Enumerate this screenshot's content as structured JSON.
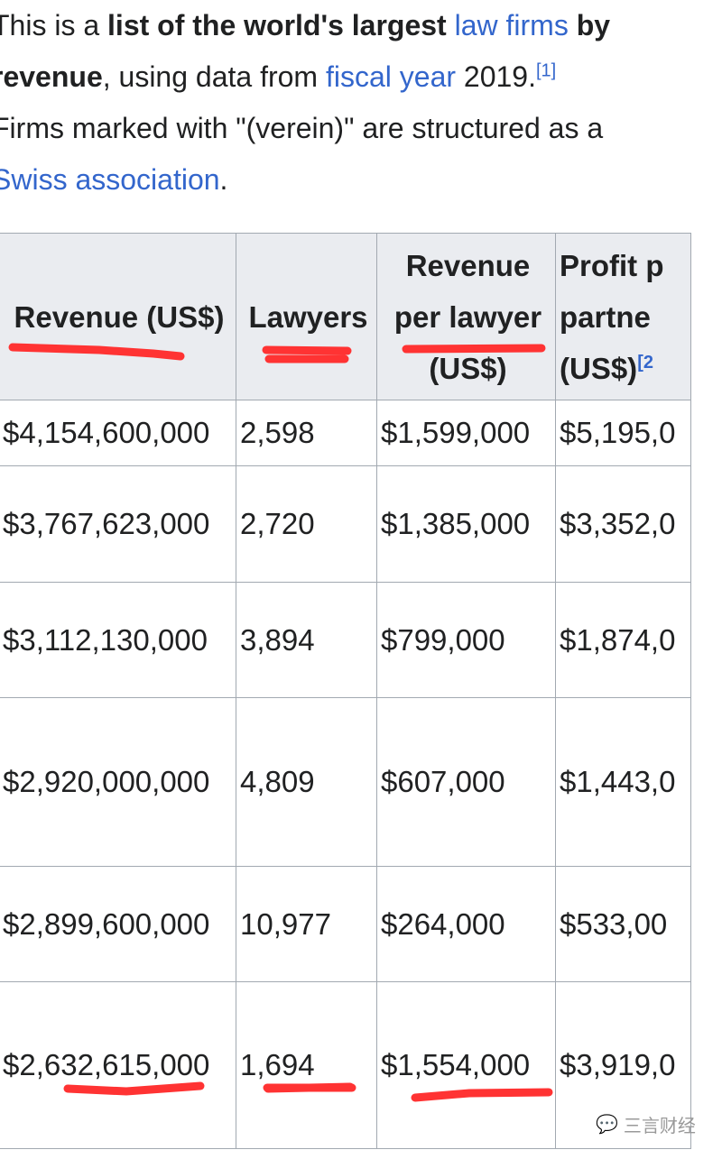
{
  "intro": {
    "p1": {
      "a": "This is a ",
      "b": "list of the world's largest ",
      "link1": "law firms",
      "c": " by",
      "d": "revenue",
      "e": ", using data from ",
      "link2": "fiscal year",
      "f": " 2019.",
      "ref": "[1]"
    },
    "p2": {
      "a": "Firms marked with \"(verein)\" are structured as a",
      "link": "Swiss association",
      "b": "."
    }
  },
  "table": {
    "headers": [
      [
        "Revenue (US$)"
      ],
      [
        "Lawyers"
      ],
      [
        "Revenue",
        "per lawyer",
        "(US$)"
      ],
      [
        "Profit p",
        "partne",
        "(US$)"
      ]
    ],
    "header_ref": "[2",
    "rows": [
      [
        "$4,154,600,000",
        "2,598",
        "$1,599,000",
        "$5,195,0"
      ],
      [
        "$3,767,623,000",
        "2,720",
        "$1,385,000",
        "$3,352,0"
      ],
      [
        "$3,112,130,000",
        "3,894",
        "$799,000",
        "$1,874,0"
      ],
      [
        "$2,920,000,000",
        "4,809",
        "$607,000",
        "$1,443,0"
      ],
      [
        "$2,899,600,000",
        "10,977",
        "$264,000",
        "$533,00"
      ],
      [
        "$2,632,615,000",
        "1,694",
        "$1,554,000",
        "$3,919,0"
      ]
    ]
  },
  "watermark": "三言财经",
  "colors": {
    "link": "#3366cc",
    "annotation": "#ff3333"
  }
}
